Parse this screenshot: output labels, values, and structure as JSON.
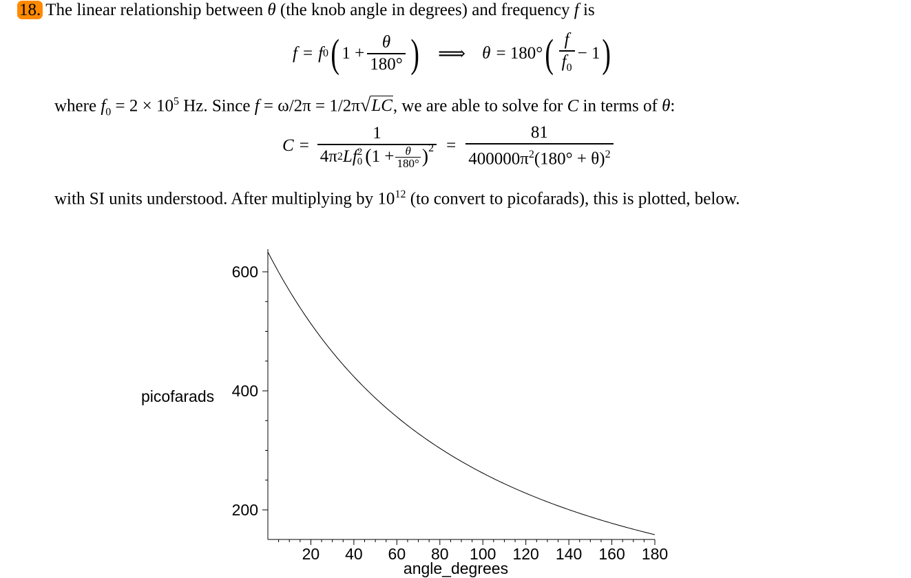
{
  "problem": {
    "number": "18.",
    "intro_pre": "The linear relationship between ",
    "intro_theta": "θ",
    "intro_mid": " (the knob angle in degrees) and frequency ",
    "intro_f": "f",
    "intro_post": " is"
  },
  "eq1": {
    "f": "f",
    "equals": "=",
    "f0": "f",
    "f0_sub": "0",
    "one_plus": "1 +",
    "theta": "θ",
    "deg180": "180°",
    "implies": "⟹",
    "theta2": "θ",
    "equals2": "= 180°",
    "f_top": "f",
    "f0_bot": "f",
    "f0_bot_sub": "0",
    "minus_one": "− 1"
  },
  "where_line": {
    "pre": "where ",
    "f0": "f",
    "f0_sub": "0",
    "val": " = 2 × 10",
    "exp": "5",
    "mid": " Hz. Since ",
    "f": "f",
    "eq_omega": " = ω/2π = 1/2π",
    "lc": "LC",
    "post": ", we are able to solve for ",
    "C": "C",
    "post2": " in terms of ",
    "theta": "θ",
    "colon": ":"
  },
  "eq2": {
    "C": "C",
    "equals": "=",
    "num1": "1",
    "den1_a": "4π",
    "den1_sq": "2",
    "den1_L": "L",
    "den1_f": "f",
    "den1_fsub": "0",
    "den1_fsup": "2",
    "den1_one_plus": "1 +",
    "den1_theta": "θ",
    "den1_180": "180°",
    "den1_outer_sq": "2",
    "equals2": "=",
    "num2": "81",
    "den2": "400000π",
    "den2_sq": "2",
    "den2_paren": "(180° + θ)",
    "den2_sq2": "2"
  },
  "after_line": {
    "pre": "with SI units understood. After multiplying by 10",
    "exp": "12",
    "post": " (to convert to picofarads), this is plotted, below."
  },
  "chart_data": {
    "type": "line",
    "xlabel": "angle_degrees",
    "ylabel": "picofarads",
    "xlim": [
      0,
      180
    ],
    "ylim": [
      153,
      630
    ],
    "xticks": [
      20,
      40,
      60,
      80,
      100,
      120,
      140,
      160,
      180
    ],
    "yticks": [
      200,
      400,
      600
    ],
    "series": [
      {
        "formula": "81e12 / (400000 * pi^2 * (180 + theta)^2)",
        "x": [
          0,
          20,
          40,
          60,
          80,
          100,
          120,
          140,
          160,
          180
        ],
        "y": [
          633.2,
          512.9,
          423.9,
          356.2,
          303.5,
          261.7,
          227.9,
          200.3,
          177.5,
          158.3
        ]
      }
    ],
    "grid": false,
    "line_color": "#000000"
  }
}
